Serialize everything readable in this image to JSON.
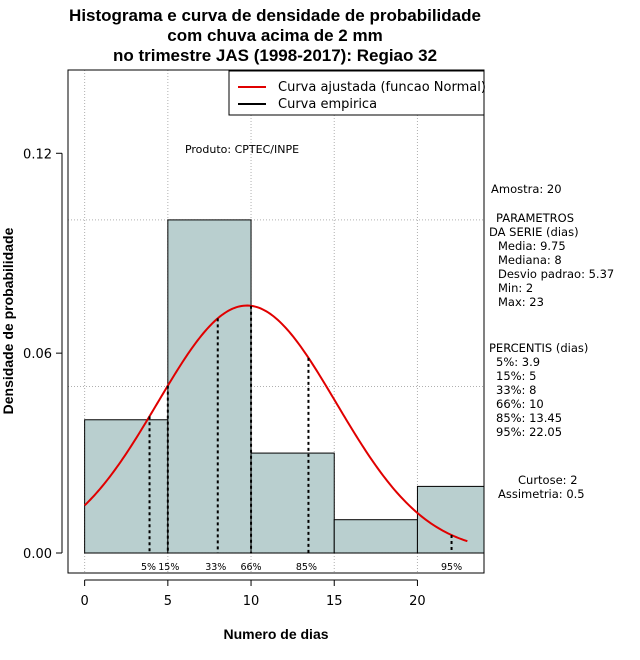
{
  "chart_data": {
    "type": "bar",
    "title_lines": [
      "Histograma e curva de densidade de probabilidade",
      "com chuva acima de 2 mm",
      "no trimestre JAS (1998-2017): Regiao 32"
    ],
    "xlabel": "Numero de dias",
    "ylabel": "Densidade de probabilidade",
    "xlim": [
      -1,
      24
    ],
    "ylim": [
      -0.006,
      0.145
    ],
    "x_ticks": [
      0,
      5,
      10,
      15,
      20
    ],
    "y_ticks": [
      0.0,
      0.06,
      0.12
    ],
    "y_tick_labels": [
      "0.00",
      "0.06",
      "0.12"
    ],
    "grid_x": [
      0,
      5,
      10,
      15,
      20
    ],
    "grid_y": [
      0.05,
      0.1
    ],
    "bins": [
      {
        "start": 0,
        "end": 5,
        "density": 0.04
      },
      {
        "start": 5,
        "end": 10,
        "density": 0.1
      },
      {
        "start": 10,
        "end": 15,
        "density": 0.03
      },
      {
        "start": 15,
        "end": 20,
        "density": 0.01
      },
      {
        "start": 20,
        "end": 24,
        "density": 0.02
      }
    ],
    "bar_color": "#b9cfcf",
    "curve": {
      "type": "normal",
      "mean": 9.75,
      "sd": 5.37,
      "x_from": 0,
      "x_to": 23,
      "color": "#e00000"
    },
    "empirical_color": "#000000",
    "percentiles": [
      {
        "x": 3.9,
        "label": "5%"
      },
      {
        "x": 5,
        "label": "15%"
      },
      {
        "x": 8,
        "label": "33%"
      },
      {
        "x": 10,
        "label": "66%"
      },
      {
        "x": 13.45,
        "label": "85%"
      },
      {
        "x": 22.05,
        "label": "95%"
      }
    ],
    "legend": [
      {
        "label": "Curva ajustada (funcao Normal)",
        "color": "#e00000"
      },
      {
        "label": "Curva empirica",
        "color": "#000000"
      }
    ],
    "legend_position": "top-right",
    "product_label": "Produto: CPTEC/INPE"
  },
  "side_panel": {
    "sample": "Amostra: 20",
    "params_title_1": "PARAMETROS",
    "params_title_2": "DA SERIE (dias)",
    "params": [
      "Media: 9.75",
      "Mediana: 8",
      "Desvio padrao: 5.37",
      "Min: 2",
      "Max: 23"
    ],
    "percentis_title": "PERCENTIS (dias)",
    "percentis": [
      "5%: 3.9",
      "15%: 5",
      "33%: 8",
      "66%: 10",
      "85%: 13.45",
      "95%: 22.05"
    ],
    "kurtosis": "Curtose: 2",
    "skewness": "Assimetria: 0.5"
  }
}
